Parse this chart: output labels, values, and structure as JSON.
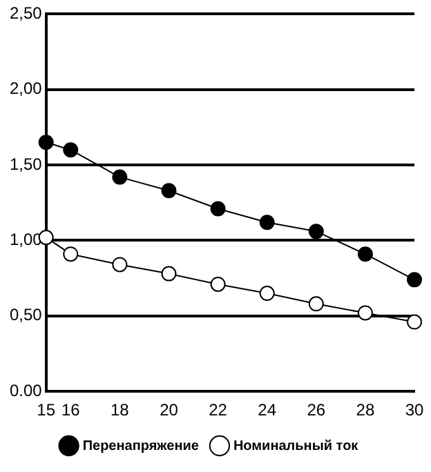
{
  "chart_data": {
    "type": "line",
    "x": [
      15,
      16,
      18,
      20,
      22,
      24,
      26,
      28,
      30
    ],
    "series": [
      {
        "name": "Перенапряжение",
        "color": "#000000",
        "values": [
          1.65,
          1.6,
          1.42,
          1.33,
          1.21,
          1.12,
          1.06,
          0.91,
          0.74
        ]
      },
      {
        "name": "Номинальный ток",
        "color": "#ffffff",
        "values": [
          1.02,
          0.91,
          0.84,
          0.78,
          0.71,
          0.65,
          0.58,
          0.52,
          0.46
        ]
      }
    ],
    "xlim": [
      15,
      30
    ],
    "xticks": [
      15,
      16,
      18,
      20,
      22,
      24,
      26,
      28,
      30
    ],
    "ylim": [
      0,
      2.5
    ],
    "yticks": [
      {
        "value": 0,
        "label": "0.00"
      },
      {
        "value": 0.5,
        "label": "0,50"
      },
      {
        "value": 1,
        "label": "1,00"
      },
      {
        "value": 1.5,
        "label": "1,50"
      },
      {
        "value": 2,
        "label": "2,00"
      },
      {
        "value": 2.5,
        "label": "2,50"
      }
    ],
    "grid": "y",
    "legend": "bottom",
    "marker": "circle",
    "line_style": "solid"
  }
}
